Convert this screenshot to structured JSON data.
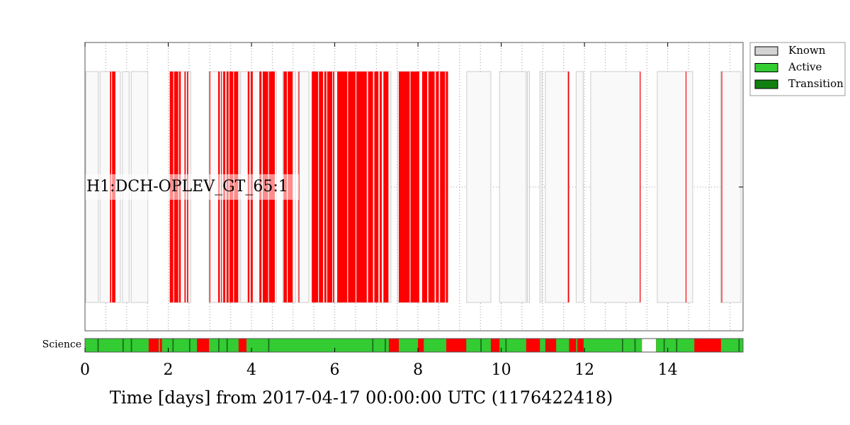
{
  "chart_data": {
    "type": "segments",
    "xlabel": "Time [days] from 2017-04-17 00:00:00 UTC (1176422418)",
    "xlim": [
      0,
      15.81
    ],
    "xticks": [
      0,
      2,
      4,
      6,
      8,
      10,
      12,
      14
    ],
    "xminorticks": [
      0.5,
      1,
      1.5,
      2.5,
      3,
      3.5,
      4.5,
      5,
      5.5,
      6.5,
      7,
      7.5,
      8.5,
      9,
      9.5,
      10.5,
      11,
      11.5,
      12.5,
      13,
      13.5,
      14.5,
      15,
      15.5
    ],
    "grid": true,
    "rows": [
      {
        "name": "H1:DCH-OPLEV_GT_65:1",
        "known_color": "#f9f9f9",
        "active_color": "#ff0000",
        "known": [
          [
            0.02,
            0.32
          ],
          [
            0.36,
            0.85
          ],
          [
            0.9,
            1.06
          ],
          [
            1.11,
            1.51
          ],
          [
            2.03,
            2.54
          ],
          [
            2.98,
            3.71
          ],
          [
            3.74,
            4.6
          ],
          [
            4.75,
            5.06
          ],
          [
            5.12,
            5.38
          ],
          [
            5.45,
            7.35
          ],
          [
            7.51,
            8.72
          ],
          [
            9.17,
            9.75
          ],
          [
            9.96,
            10.6
          ],
          [
            10.63,
            10.68
          ],
          [
            10.93,
            10.98
          ],
          [
            11.06,
            11.63
          ],
          [
            11.8,
            11.97
          ],
          [
            12.15,
            13.33
          ],
          [
            13.75,
            14.6
          ],
          [
            15.27,
            15.76
          ]
        ],
        "active": [
          [
            0.6,
            0.63
          ],
          [
            0.65,
            0.73
          ],
          [
            2.04,
            2.12
          ],
          [
            2.14,
            2.24
          ],
          [
            2.26,
            2.3
          ],
          [
            2.39,
            2.42
          ],
          [
            2.45,
            2.48
          ],
          [
            2.99,
            3.01
          ],
          [
            3.2,
            3.24
          ],
          [
            3.27,
            3.29
          ],
          [
            3.32,
            3.37
          ],
          [
            3.4,
            3.45
          ],
          [
            3.47,
            3.56
          ],
          [
            3.58,
            3.68
          ],
          [
            3.91,
            3.95
          ],
          [
            3.98,
            4.03
          ],
          [
            4.19,
            4.24
          ],
          [
            4.27,
            4.4
          ],
          [
            4.42,
            4.56
          ],
          [
            4.77,
            4.85
          ],
          [
            4.87,
            4.99
          ],
          [
            5.13,
            5.15
          ],
          [
            5.45,
            5.6
          ],
          [
            5.62,
            5.72
          ],
          [
            5.75,
            5.8
          ],
          [
            5.82,
            5.94
          ],
          [
            5.96,
            5.99
          ],
          [
            6.06,
            6.3
          ],
          [
            6.32,
            6.5
          ],
          [
            6.52,
            6.77
          ],
          [
            6.8,
            6.92
          ],
          [
            6.95,
            7.05
          ],
          [
            7.08,
            7.13
          ],
          [
            7.17,
            7.29
          ],
          [
            7.54,
            7.8
          ],
          [
            7.82,
            8.03
          ],
          [
            8.1,
            8.22
          ],
          [
            8.25,
            8.4
          ],
          [
            8.43,
            8.5
          ],
          [
            8.53,
            8.65
          ],
          [
            8.67,
            8.72
          ],
          [
            11.6,
            11.63
          ],
          [
            13.33,
            13.35
          ],
          [
            14.43,
            14.45
          ],
          [
            15.29,
            15.31
          ]
        ]
      },
      {
        "name": "Science",
        "known_color": "#ff0000",
        "active_color": "#33cc33",
        "transition_color": "#1a6b1a",
        "known": [
          [
            0,
            13.38
          ],
          [
            13.72,
            15.81
          ]
        ],
        "active": [
          [
            0,
            1.53
          ],
          [
            1.77,
            1.8
          ],
          [
            1.85,
            2.69
          ],
          [
            2.98,
            3.69
          ],
          [
            3.88,
            7.3
          ],
          [
            7.54,
            8.0
          ],
          [
            8.14,
            8.68
          ],
          [
            9.16,
            9.75
          ],
          [
            9.96,
            10.6
          ],
          [
            10.93,
            11.06
          ],
          [
            11.32,
            11.63
          ],
          [
            11.8,
            11.83
          ],
          [
            11.98,
            13.38
          ],
          [
            13.72,
            14.64
          ],
          [
            15.28,
            15.81
          ]
        ],
        "transition": [
          [
            0.3,
            0.33
          ],
          [
            0.9,
            0.93
          ],
          [
            1.1,
            1.13
          ],
          [
            2.1,
            2.13
          ],
          [
            2.5,
            2.53
          ],
          [
            3.2,
            3.23
          ],
          [
            3.4,
            3.43
          ],
          [
            4.4,
            4.43
          ],
          [
            6.9,
            6.93
          ],
          [
            7.2,
            7.23
          ],
          [
            9.5,
            9.53
          ],
          [
            10.1,
            10.13
          ],
          [
            11.1,
            11.13
          ],
          [
            12.9,
            12.93
          ],
          [
            13.2,
            13.23
          ],
          [
            13.9,
            13.93
          ],
          [
            14.2,
            14.23
          ],
          [
            15.7,
            15.73
          ]
        ]
      }
    ],
    "legend": {
      "position": "outside upper right",
      "entries": [
        {
          "name": "Known",
          "color": "#d3d3d3"
        },
        {
          "name": "Active",
          "color": "#33cc33"
        },
        {
          "name": "Transition",
          "color": "#118011"
        }
      ]
    }
  }
}
